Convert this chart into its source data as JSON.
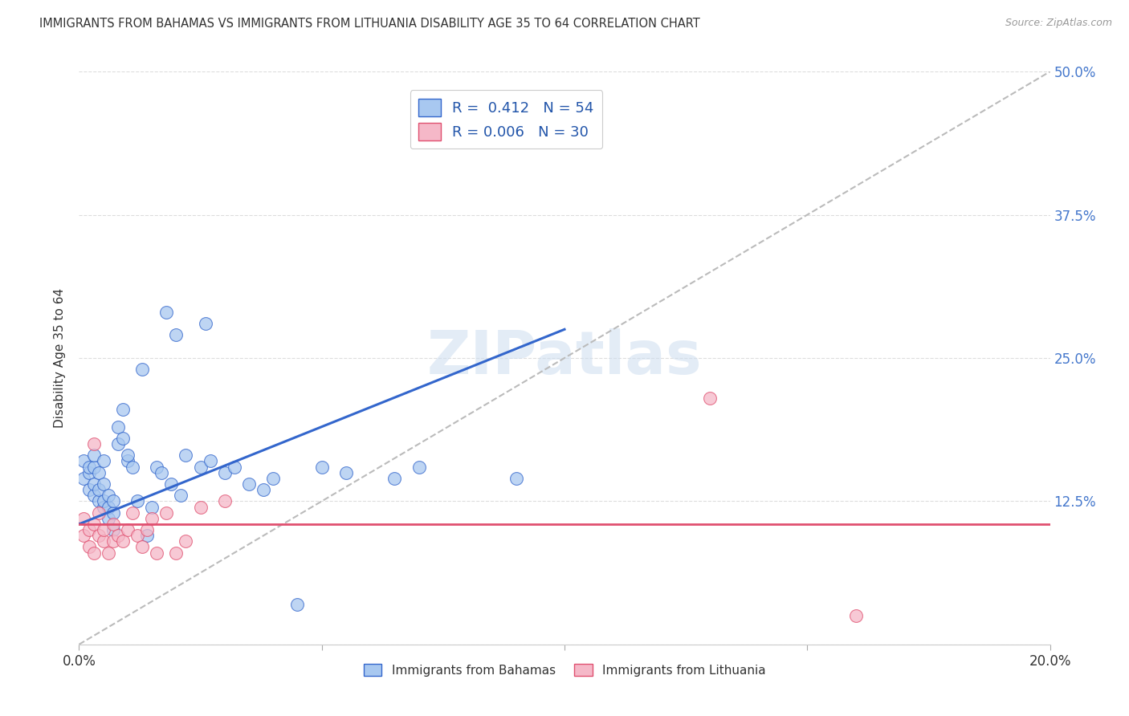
{
  "title": "IMMIGRANTS FROM BAHAMAS VS IMMIGRANTS FROM LITHUANIA DISABILITY AGE 35 TO 64 CORRELATION CHART",
  "source": "Source: ZipAtlas.com",
  "ylabel": "Disability Age 35 to 64",
  "legend_label_blue": "Immigrants from Bahamas",
  "legend_label_pink": "Immigrants from Lithuania",
  "R_blue": 0.412,
  "N_blue": 54,
  "R_pink": 0.006,
  "N_pink": 30,
  "xlim": [
    0.0,
    0.2
  ],
  "ylim": [
    0.0,
    0.5
  ],
  "xticks": [
    0.0,
    0.05,
    0.1,
    0.15,
    0.2
  ],
  "yticks": [
    0.0,
    0.125,
    0.25,
    0.375,
    0.5
  ],
  "color_blue": "#a8c8f0",
  "color_pink": "#f5b8c8",
  "color_blue_line": "#3366cc",
  "color_pink_line": "#e05070",
  "color_diag": "#bbbbbb",
  "watermark": "ZIPatlas",
  "blue_x": [
    0.001,
    0.001,
    0.002,
    0.002,
    0.002,
    0.003,
    0.003,
    0.003,
    0.003,
    0.004,
    0.004,
    0.004,
    0.005,
    0.005,
    0.005,
    0.005,
    0.006,
    0.006,
    0.006,
    0.007,
    0.007,
    0.007,
    0.008,
    0.008,
    0.009,
    0.009,
    0.01,
    0.01,
    0.011,
    0.012,
    0.013,
    0.014,
    0.015,
    0.016,
    0.017,
    0.018,
    0.019,
    0.02,
    0.021,
    0.022,
    0.025,
    0.026,
    0.027,
    0.03,
    0.032,
    0.035,
    0.038,
    0.04,
    0.045,
    0.05,
    0.055,
    0.065,
    0.07,
    0.09
  ],
  "blue_y": [
    0.145,
    0.16,
    0.15,
    0.135,
    0.155,
    0.13,
    0.155,
    0.14,
    0.165,
    0.125,
    0.135,
    0.15,
    0.12,
    0.125,
    0.14,
    0.16,
    0.11,
    0.12,
    0.13,
    0.1,
    0.115,
    0.125,
    0.19,
    0.175,
    0.205,
    0.18,
    0.16,
    0.165,
    0.155,
    0.125,
    0.24,
    0.095,
    0.12,
    0.155,
    0.15,
    0.29,
    0.14,
    0.27,
    0.13,
    0.165,
    0.155,
    0.28,
    0.16,
    0.15,
    0.155,
    0.14,
    0.135,
    0.145,
    0.035,
    0.155,
    0.15,
    0.145,
    0.155,
    0.145
  ],
  "pink_x": [
    0.001,
    0.001,
    0.002,
    0.002,
    0.003,
    0.003,
    0.003,
    0.004,
    0.004,
    0.005,
    0.005,
    0.006,
    0.007,
    0.007,
    0.008,
    0.009,
    0.01,
    0.011,
    0.012,
    0.013,
    0.014,
    0.015,
    0.016,
    0.018,
    0.02,
    0.022,
    0.025,
    0.03,
    0.13,
    0.16
  ],
  "pink_y": [
    0.095,
    0.11,
    0.085,
    0.1,
    0.08,
    0.105,
    0.175,
    0.095,
    0.115,
    0.09,
    0.1,
    0.08,
    0.09,
    0.105,
    0.095,
    0.09,
    0.1,
    0.115,
    0.095,
    0.085,
    0.1,
    0.11,
    0.08,
    0.115,
    0.08,
    0.09,
    0.12,
    0.125,
    0.215,
    0.025
  ],
  "blue_line_x": [
    0.0,
    0.1
  ],
  "blue_line_y": [
    0.105,
    0.275
  ],
  "pink_line_y": 0.105
}
